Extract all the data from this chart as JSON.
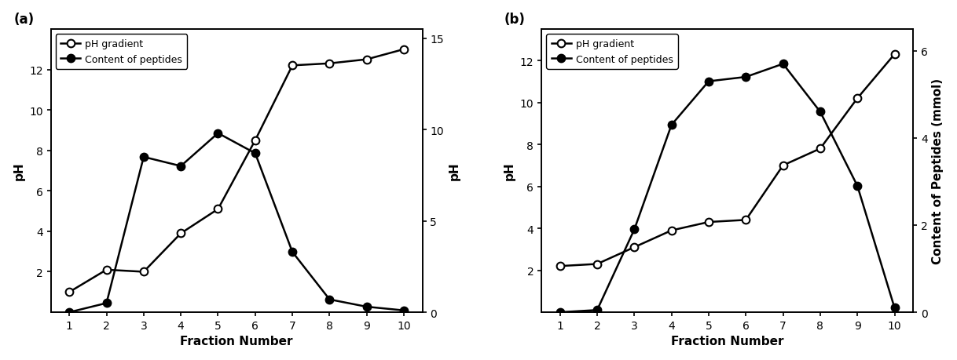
{
  "a": {
    "fractions": [
      1,
      2,
      3,
      4,
      5,
      6,
      7,
      8,
      9,
      10
    ],
    "pH": [
      1.0,
      2.1,
      2.0,
      3.9,
      5.1,
      8.5,
      12.2,
      12.3,
      12.5,
      13.0
    ],
    "peptides": [
      0.0,
      0.5,
      8.5,
      8.0,
      9.8,
      8.7,
      3.3,
      0.7,
      0.3,
      0.1
    ],
    "pH_yticks": [
      2,
      4,
      6,
      8,
      10,
      12
    ],
    "pH_ylim": [
      0,
      14.0
    ],
    "peptide_yticks": [
      0,
      5,
      10,
      15
    ],
    "peptide_ylim": [
      0,
      15.5
    ],
    "ylabel_left": "pH",
    "ylabel_right": "pH",
    "xlabel": "Fraction Number",
    "panel_label": "(a)"
  },
  "b": {
    "fractions": [
      1,
      2,
      3,
      4,
      5,
      6,
      7,
      8,
      9,
      10
    ],
    "pH": [
      2.2,
      2.3,
      3.1,
      3.9,
      4.3,
      4.4,
      7.0,
      7.8,
      10.2,
      12.3
    ],
    "peptides": [
      0.0,
      0.05,
      1.9,
      4.3,
      5.3,
      5.4,
      5.7,
      4.6,
      2.9,
      0.1
    ],
    "pH_yticks": [
      2,
      4,
      6,
      8,
      10,
      12
    ],
    "pH_ylim": [
      0,
      13.5
    ],
    "peptide_yticks": [
      0,
      2,
      4,
      6
    ],
    "peptide_ylim": [
      0,
      6.5
    ],
    "ylabel_left": "pH",
    "ylabel_right": "Content of Peptides (mmol)",
    "xlabel": "Fraction Number",
    "panel_label": "(b)"
  },
  "legend_open": "pH gradient",
  "legend_filled": "Content of peptides",
  "line_color": "black",
  "marker_size": 7,
  "line_width": 1.8,
  "font_size_label": 11,
  "font_size_tick": 10,
  "font_size_legend": 9,
  "font_size_panel": 12
}
